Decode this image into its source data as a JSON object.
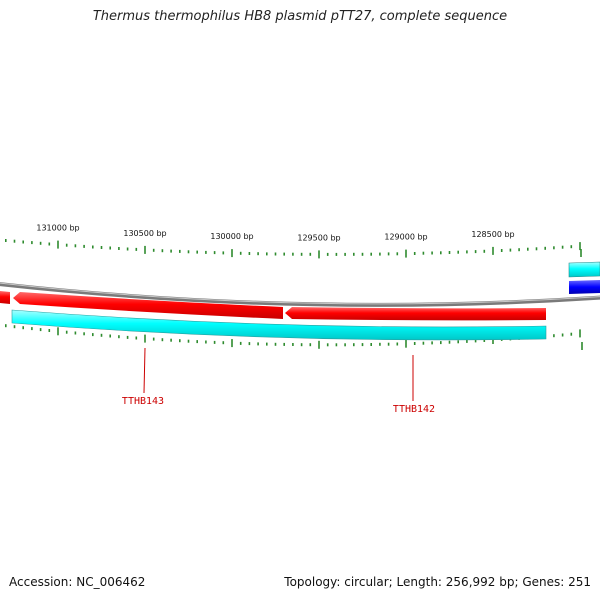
{
  "title": "Thermus thermophilus HB8 plasmid pTT27, complete sequence",
  "footer": {
    "accession": "Accession: NC_006462",
    "summary": "Topology: circular; Length: 256,992 bp; Genes: 251"
  },
  "ruler": {
    "unit": "bp",
    "labels": [
      {
        "bp": 131000,
        "text": "131000 bp"
      },
      {
        "bp": 130500,
        "text": "130500 bp"
      },
      {
        "bp": 130000,
        "text": "130000 bp"
      },
      {
        "bp": 129500,
        "text": "129500 bp"
      },
      {
        "bp": 129000,
        "text": "129000 bp"
      },
      {
        "bp": 128500,
        "text": "128500 bp"
      }
    ]
  },
  "genes": [
    {
      "label": "TTHB143",
      "strand": "reverse"
    },
    {
      "label": "TTHB142",
      "strand": "reverse"
    }
  ],
  "colors": {
    "gene": "#ff0000",
    "cds": "#00ffff",
    "other_feature": "#0000ff",
    "backbone": "#808080",
    "ticks": "#2e8b2e",
    "gene_label": "#cc0000"
  }
}
